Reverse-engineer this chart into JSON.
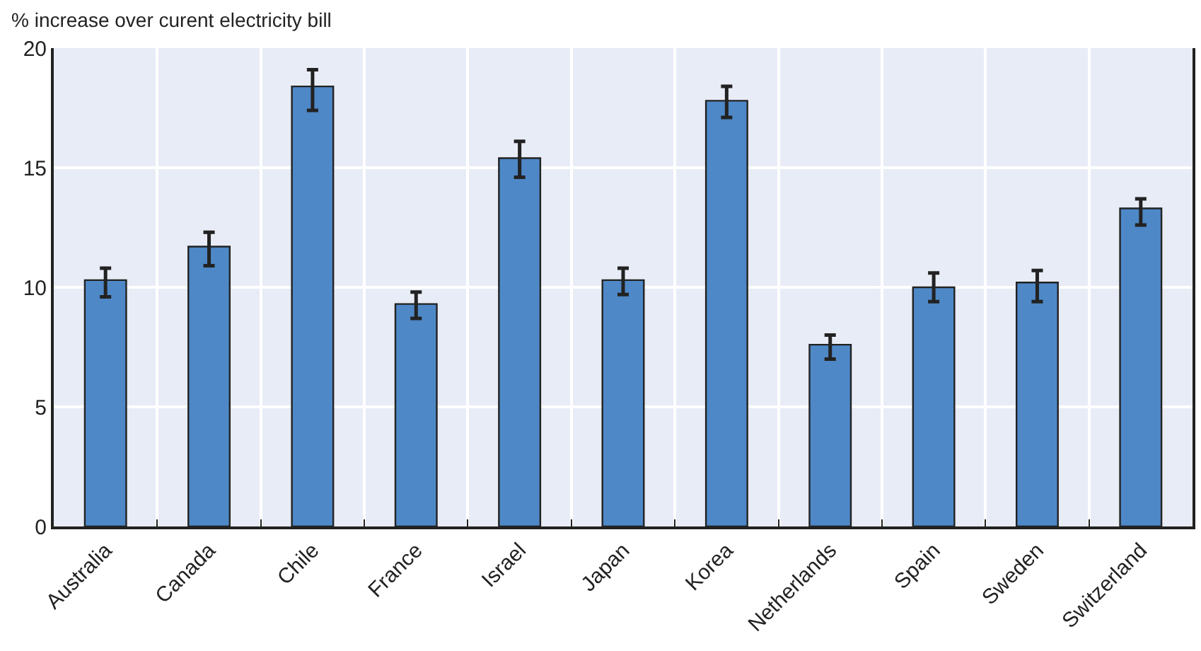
{
  "chart_data": {
    "type": "bar",
    "ylabel": "% increase over curent electricity bill",
    "categories": [
      "Australia",
      "Canada",
      "Chile",
      "France",
      "Israel",
      "Japan",
      "Korea",
      "Netherlands",
      "Spain",
      "Sweden",
      "Switzerland"
    ],
    "values": [
      10.3,
      11.7,
      18.4,
      9.3,
      15.4,
      10.3,
      17.8,
      7.6,
      10.0,
      10.2,
      13.3
    ],
    "errors": [
      [
        9.6,
        10.8
      ],
      [
        10.9,
        12.3
      ],
      [
        17.4,
        19.1
      ],
      [
        8.7,
        9.8
      ],
      [
        14.6,
        16.1
      ],
      [
        9.7,
        10.8
      ],
      [
        17.1,
        18.4
      ],
      [
        7.0,
        8.0
      ],
      [
        9.4,
        10.6
      ],
      [
        9.4,
        10.7
      ],
      [
        12.6,
        13.7
      ]
    ],
    "color": "#4e88c7",
    "ylim": [
      0,
      20
    ],
    "yticks": [
      0,
      5,
      10,
      15,
      20
    ],
    "grid": true
  }
}
